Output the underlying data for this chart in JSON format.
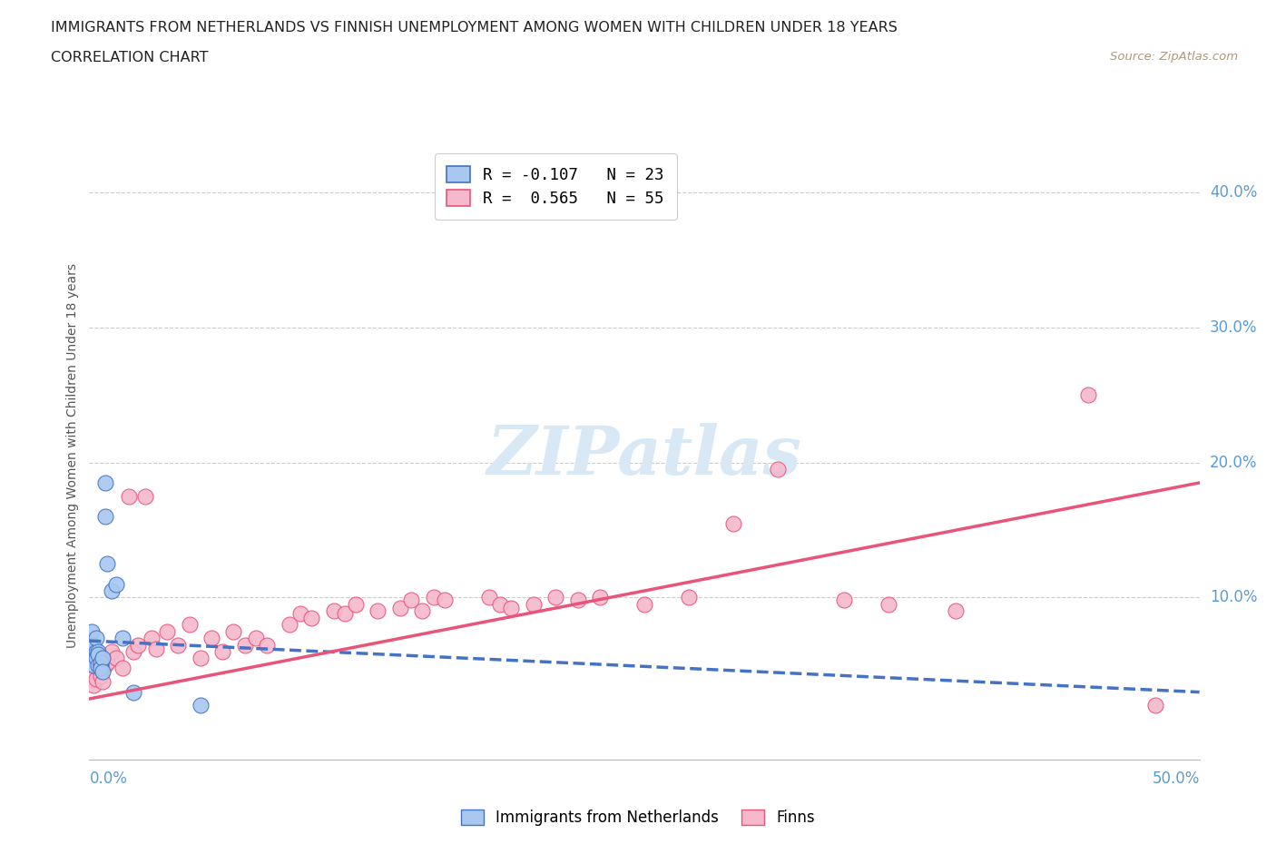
{
  "title": "IMMIGRANTS FROM NETHERLANDS VS FINNISH UNEMPLOYMENT AMONG WOMEN WITH CHILDREN UNDER 18 YEARS",
  "subtitle": "CORRELATION CHART",
  "source": "Source: ZipAtlas.com",
  "ylabel": "Unemployment Among Women with Children Under 18 years",
  "xlim": [
    0.0,
    0.5
  ],
  "ylim": [
    -0.02,
    0.43
  ],
  "yticks": [
    0.1,
    0.2,
    0.3,
    0.4
  ],
  "ytick_labels": [
    "10.0%",
    "20.0%",
    "30.0%",
    "40.0%"
  ],
  "color_netherlands": "#A8C8F0",
  "color_finns": "#F5B8CC",
  "color_trendline_netherlands": "#4472C4",
  "color_trendline_finns": "#E8547A",
  "watermark_color": "#D8E8F4",
  "legend_r1": "R = -0.107   N = 23",
  "legend_r2": "R =  0.565   N = 55",
  "nl_x": [
    0.001,
    0.001,
    0.002,
    0.002,
    0.003,
    0.003,
    0.003,
    0.004,
    0.004,
    0.004,
    0.005,
    0.005,
    0.005,
    0.006,
    0.006,
    0.007,
    0.007,
    0.008,
    0.01,
    0.012,
    0.015,
    0.02,
    0.05
  ],
  "nl_y": [
    0.06,
    0.075,
    0.065,
    0.05,
    0.06,
    0.055,
    0.07,
    0.05,
    0.06,
    0.058,
    0.05,
    0.052,
    0.048,
    0.055,
    0.045,
    0.185,
    0.16,
    0.125,
    0.105,
    0.11,
    0.07,
    0.03,
    0.02
  ],
  "fi_x": [
    0.001,
    0.002,
    0.003,
    0.004,
    0.005,
    0.006,
    0.007,
    0.008,
    0.01,
    0.012,
    0.015,
    0.018,
    0.02,
    0.022,
    0.025,
    0.028,
    0.03,
    0.035,
    0.04,
    0.045,
    0.05,
    0.055,
    0.06,
    0.065,
    0.07,
    0.075,
    0.08,
    0.09,
    0.095,
    0.1,
    0.11,
    0.115,
    0.12,
    0.13,
    0.14,
    0.145,
    0.15,
    0.155,
    0.16,
    0.18,
    0.185,
    0.19,
    0.2,
    0.21,
    0.22,
    0.23,
    0.25,
    0.27,
    0.29,
    0.31,
    0.34,
    0.36,
    0.39,
    0.45,
    0.48
  ],
  "fi_y": [
    0.04,
    0.035,
    0.04,
    0.048,
    0.042,
    0.038,
    0.05,
    0.052,
    0.06,
    0.055,
    0.048,
    0.175,
    0.06,
    0.065,
    0.175,
    0.07,
    0.062,
    0.075,
    0.065,
    0.08,
    0.055,
    0.07,
    0.06,
    0.075,
    0.065,
    0.07,
    0.065,
    0.08,
    0.088,
    0.085,
    0.09,
    0.088,
    0.095,
    0.09,
    0.092,
    0.098,
    0.09,
    0.1,
    0.098,
    0.1,
    0.095,
    0.092,
    0.095,
    0.1,
    0.098,
    0.1,
    0.095,
    0.1,
    0.155,
    0.195,
    0.098,
    0.095,
    0.09,
    0.25,
    0.02
  ],
  "trendline_nl_x0": 0.0,
  "trendline_nl_x1": 0.5,
  "trendline_nl_y0": 0.068,
  "trendline_nl_y1": 0.03,
  "trendline_fi_x0": 0.0,
  "trendline_fi_x1": 0.5,
  "trendline_fi_y0": 0.025,
  "trendline_fi_y1": 0.185
}
